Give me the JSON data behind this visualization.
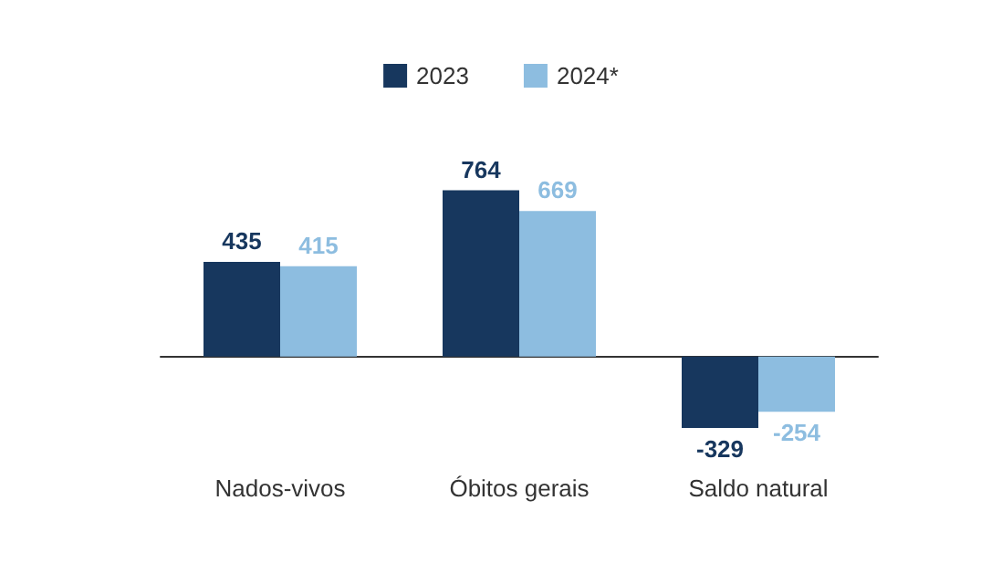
{
  "chart_data": {
    "type": "bar",
    "categories": [
      "Nados-vivos",
      "Óbitos gerais",
      "Saldo natural"
    ],
    "series": [
      {
        "name": "2023",
        "color": "#17375e",
        "values": [
          435,
          764,
          -329
        ]
      },
      {
        "name": "2024*",
        "color": "#8dbde0",
        "values": [
          415,
          669,
          -254
        ]
      }
    ],
    "data_labels": true,
    "legend": "top"
  }
}
